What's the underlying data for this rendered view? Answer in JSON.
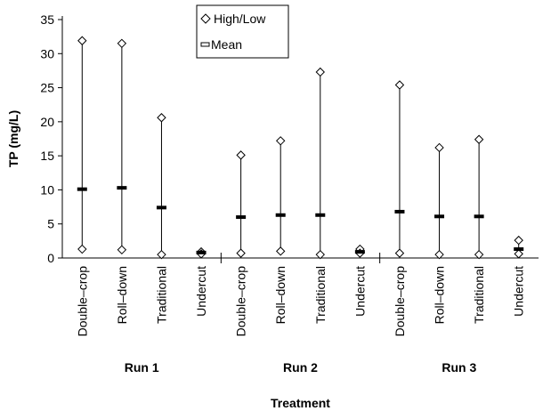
{
  "chart_data": {
    "type": "high-low-mean",
    "xlabel": "Treatment",
    "ylabel": "TP (mg/L)",
    "ylim": [
      0,
      35
    ],
    "yticks": [
      0,
      5,
      10,
      15,
      20,
      25,
      30,
      35
    ],
    "legend": {
      "placement": "top-center",
      "entries": [
        "High/Low",
        "Mean"
      ]
    },
    "groups": [
      {
        "name": "Run 1",
        "categories": [
          "Double–crop",
          "Roll–down",
          "Traditional",
          "Undercut"
        ],
        "high": [
          31.9,
          31.5,
          20.6,
          0.9
        ],
        "low": [
          1.3,
          1.2,
          0.5,
          0.6
        ],
        "mean": [
          10.1,
          10.3,
          7.4,
          0.8
        ]
      },
      {
        "name": "Run 2",
        "categories": [
          "Double–crop",
          "Roll–down",
          "Traditional",
          "Undercut"
        ],
        "high": [
          15.1,
          17.2,
          27.3,
          1.3
        ],
        "low": [
          0.7,
          1.0,
          0.5,
          0.7
        ],
        "mean": [
          6.0,
          6.3,
          6.3,
          0.9
        ]
      },
      {
        "name": "Run 3",
        "categories": [
          "Double–crop",
          "Roll–down",
          "Traditional",
          "Undercut"
        ],
        "high": [
          25.4,
          16.2,
          17.4,
          2.6
        ],
        "low": [
          0.7,
          0.5,
          0.5,
          0.6
        ],
        "mean": [
          6.8,
          6.1,
          6.1,
          1.3
        ]
      }
    ]
  }
}
